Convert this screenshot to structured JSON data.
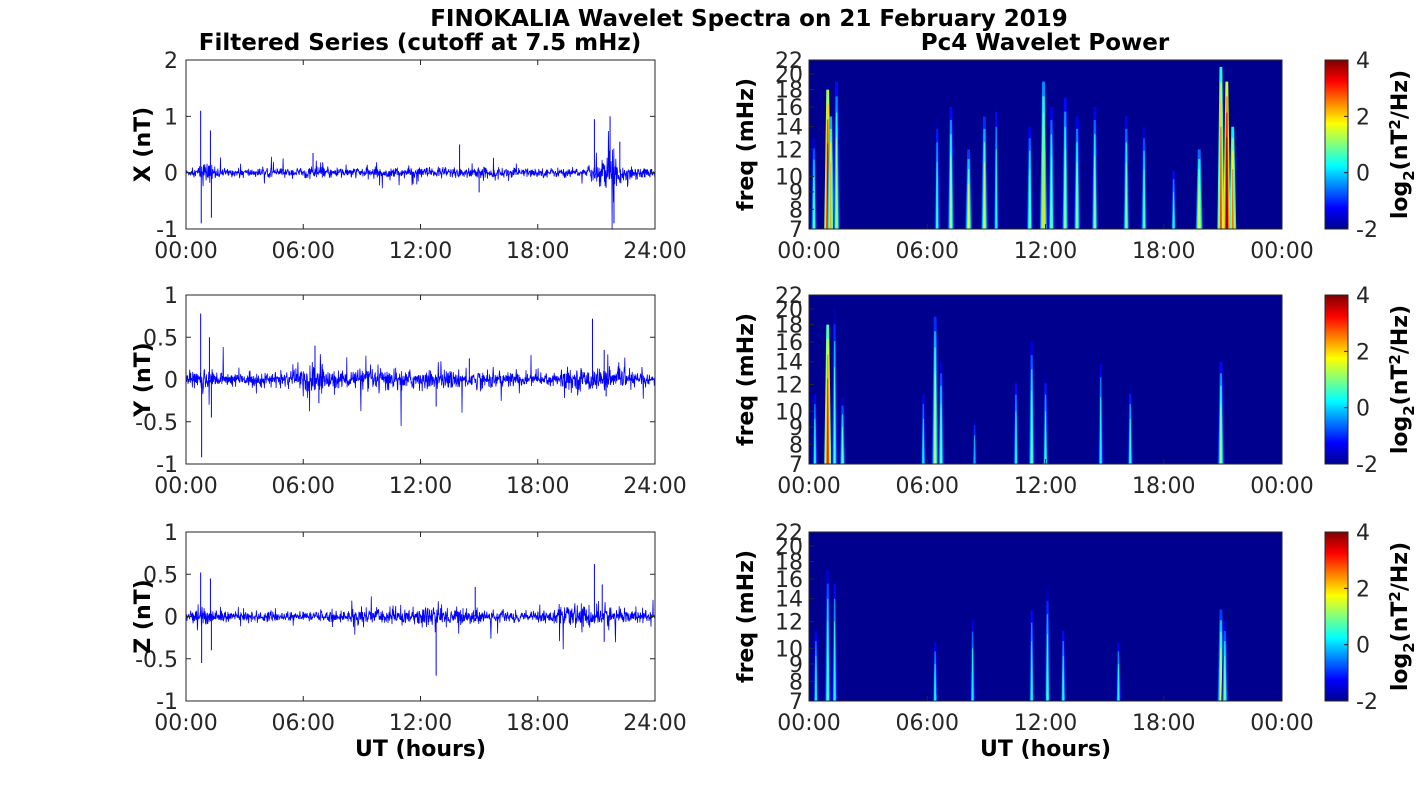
{
  "figure": {
    "title": "FINOKALIA Wavelet Spectra on 21 February 2019",
    "left_title": "Filtered Series (cutoff at 7.5 mHz)",
    "right_title": "Pc4 Wavelet Power"
  },
  "colors": {
    "trace": "#0000ff",
    "spectrum_background": "#00008f",
    "axes": "#262626"
  },
  "chart_data": [
    {
      "type": "line",
      "panel": "X",
      "ylabel": "X (nT)",
      "xlabel": "",
      "xlim": [
        0,
        24
      ],
      "ylim": [
        -1,
        2
      ],
      "x_tick_labels": [
        "00:00",
        "06:00",
        "12:00",
        "18:00",
        "24:00"
      ],
      "y_ticks": [
        -1,
        0,
        1,
        2
      ],
      "y_tick_labels": [
        "-1",
        "0",
        "1",
        "2"
      ],
      "noise_amplitude": 0.06,
      "envelope": [
        {
          "t": 0.0,
          "a": 0.05
        },
        {
          "t": 0.5,
          "a": 0.06
        },
        {
          "t": 0.8,
          "a": 0.18
        },
        {
          "t": 1.3,
          "a": 0.14
        },
        {
          "t": 2.0,
          "a": 0.06
        },
        {
          "t": 5.5,
          "a": 0.07
        },
        {
          "t": 6.5,
          "a": 0.1
        },
        {
          "t": 8.0,
          "a": 0.08
        },
        {
          "t": 12.0,
          "a": 0.09
        },
        {
          "t": 14.0,
          "a": 0.1
        },
        {
          "t": 18.0,
          "a": 0.07
        },
        {
          "t": 20.5,
          "a": 0.08
        },
        {
          "t": 21.8,
          "a": 0.35
        },
        {
          "t": 22.3,
          "a": 0.15
        },
        {
          "t": 24.0,
          "a": 0.06
        }
      ],
      "spikes": [
        {
          "t": 0.75,
          "v": 1.1
        },
        {
          "t": 0.78,
          "v": -0.9
        },
        {
          "t": 1.25,
          "v": 0.75
        },
        {
          "t": 1.3,
          "v": -0.8
        },
        {
          "t": 6.5,
          "v": 0.35
        },
        {
          "t": 14.0,
          "v": 0.5
        },
        {
          "t": 15.0,
          "v": -0.35
        },
        {
          "t": 20.9,
          "v": 0.95
        },
        {
          "t": 21.7,
          "v": 1.0
        },
        {
          "t": 21.9,
          "v": -0.9
        },
        {
          "t": 22.2,
          "v": 0.55
        }
      ]
    },
    {
      "type": "line",
      "panel": "Y",
      "ylabel": "Y (nT)",
      "xlabel": "",
      "xlim": [
        0,
        24
      ],
      "ylim": [
        -1,
        1
      ],
      "x_tick_labels": [
        "00:00",
        "06:00",
        "12:00",
        "18:00",
        "24:00"
      ],
      "y_ticks": [
        -1,
        -0.5,
        0,
        0.5,
        1
      ],
      "y_tick_labels": [
        "-1",
        "-0.5",
        "0",
        "0.5",
        "1"
      ],
      "noise_amplitude": 0.06,
      "envelope": [
        {
          "t": 0.0,
          "a": 0.06
        },
        {
          "t": 0.8,
          "a": 0.15
        },
        {
          "t": 1.5,
          "a": 0.08
        },
        {
          "t": 5.0,
          "a": 0.07
        },
        {
          "t": 6.5,
          "a": 0.2
        },
        {
          "t": 7.5,
          "a": 0.1
        },
        {
          "t": 10.5,
          "a": 0.12
        },
        {
          "t": 12.0,
          "a": 0.1
        },
        {
          "t": 15.0,
          "a": 0.1
        },
        {
          "t": 18.0,
          "a": 0.08
        },
        {
          "t": 21.0,
          "a": 0.13
        },
        {
          "t": 22.0,
          "a": 0.1
        },
        {
          "t": 24.0,
          "a": 0.06
        }
      ],
      "spikes": [
        {
          "t": 0.75,
          "v": 0.78
        },
        {
          "t": 0.8,
          "v": -0.92
        },
        {
          "t": 1.2,
          "v": 0.5
        },
        {
          "t": 1.3,
          "v": -0.45
        },
        {
          "t": 6.6,
          "v": 0.4
        },
        {
          "t": 6.8,
          "v": -0.28
        },
        {
          "t": 12.8,
          "v": -0.32
        },
        {
          "t": 14.5,
          "v": 0.25
        },
        {
          "t": 20.8,
          "v": 0.72
        },
        {
          "t": 21.4,
          "v": 0.35
        },
        {
          "t": 21.5,
          "v": -0.2
        }
      ]
    },
    {
      "type": "line",
      "panel": "Z",
      "ylabel": "Z (nT)",
      "xlabel": "UT (hours)",
      "xlim": [
        0,
        24
      ],
      "ylim": [
        -1,
        1
      ],
      "x_tick_labels": [
        "00:00",
        "06:00",
        "12:00",
        "18:00",
        "24:00"
      ],
      "y_ticks": [
        -1,
        -0.5,
        0,
        0.5,
        1
      ],
      "y_tick_labels": [
        "-1",
        "-0.5",
        "0",
        "0.5",
        "1"
      ],
      "noise_amplitude": 0.04,
      "envelope": [
        {
          "t": 0.0,
          "a": 0.05
        },
        {
          "t": 0.8,
          "a": 0.12
        },
        {
          "t": 1.5,
          "a": 0.06
        },
        {
          "t": 6.0,
          "a": 0.05
        },
        {
          "t": 8.0,
          "a": 0.07
        },
        {
          "t": 11.5,
          "a": 0.1
        },
        {
          "t": 12.8,
          "a": 0.12
        },
        {
          "t": 15.0,
          "a": 0.07
        },
        {
          "t": 18.0,
          "a": 0.06
        },
        {
          "t": 21.3,
          "a": 0.15
        },
        {
          "t": 22.0,
          "a": 0.09
        },
        {
          "t": 24.0,
          "a": 0.05
        }
      ],
      "spikes": [
        {
          "t": 0.75,
          "v": 0.52
        },
        {
          "t": 0.8,
          "v": -0.55
        },
        {
          "t": 1.25,
          "v": 0.45
        },
        {
          "t": 1.3,
          "v": -0.4
        },
        {
          "t": 12.8,
          "v": -0.7
        },
        {
          "t": 14.8,
          "v": 0.35
        },
        {
          "t": 20.9,
          "v": 0.62
        },
        {
          "t": 21.3,
          "v": 0.38
        },
        {
          "t": 21.4,
          "v": -0.3
        }
      ]
    },
    {
      "type": "heatmap",
      "panel": "X",
      "ylabel": "freq (mHz)",
      "xlabel": "",
      "colorbar_label": "log2(nT2/Hz)",
      "xlim": [
        0,
        24
      ],
      "ylim": [
        7,
        22
      ],
      "color_range": [
        -2,
        4
      ],
      "x_tick_labels": [
        "00:00",
        "06:00",
        "12:00",
        "18:00",
        "00:00"
      ],
      "y_ticks": [
        7,
        8,
        9,
        10,
        12,
        14,
        16,
        18,
        20,
        22
      ],
      "colorbar_ticks": [
        -2,
        0,
        2,
        4
      ],
      "bursts": [
        {
          "t": 0.25,
          "top": 13,
          "peak": 0.8
        },
        {
          "t": 0.95,
          "top": 18,
          "peak": 3.6
        },
        {
          "t": 1.1,
          "top": 15,
          "peak": 2.2
        },
        {
          "t": 1.4,
          "top": 19,
          "peak": 1.2
        },
        {
          "t": 6.5,
          "top": 15,
          "peak": 0.5
        },
        {
          "t": 7.2,
          "top": 16,
          "peak": 1.2
        },
        {
          "t": 8.1,
          "top": 12,
          "peak": 1.5
        },
        {
          "t": 8.9,
          "top": 15,
          "peak": 1.4
        },
        {
          "t": 9.5,
          "top": 17,
          "peak": 0.4
        },
        {
          "t": 11.2,
          "top": 14,
          "peak": 1.0
        },
        {
          "t": 11.9,
          "top": 19,
          "peak": 2.0
        },
        {
          "t": 12.3,
          "top": 16,
          "peak": 1.0
        },
        {
          "t": 13.0,
          "top": 17,
          "peak": 1.2
        },
        {
          "t": 13.6,
          "top": 15,
          "peak": 1.1
        },
        {
          "t": 14.5,
          "top": 16,
          "peak": 1.0
        },
        {
          "t": 16.1,
          "top": 15,
          "peak": 1.0
        },
        {
          "t": 17.0,
          "top": 14,
          "peak": 0.8
        },
        {
          "t": 18.5,
          "top": 11,
          "peak": 0.4
        },
        {
          "t": 19.8,
          "top": 12,
          "peak": 1.8
        },
        {
          "t": 20.9,
          "top": 21,
          "peak": 2.8
        },
        {
          "t": 21.2,
          "top": 19,
          "peak": 3.9
        },
        {
          "t": 21.5,
          "top": 14,
          "peak": 2.6
        }
      ]
    },
    {
      "type": "heatmap",
      "panel": "Y",
      "ylabel": "freq (mHz)",
      "xlabel": "",
      "colorbar_label": "log2(nT2/Hz)",
      "xlim": [
        0,
        24
      ],
      "ylim": [
        7,
        22
      ],
      "color_range": [
        -2,
        4
      ],
      "x_tick_labels": [
        "00:00",
        "06:00",
        "12:00",
        "18:00",
        "00:00"
      ],
      "y_ticks": [
        7,
        8,
        9,
        10,
        12,
        14,
        16,
        18,
        20,
        22
      ],
      "colorbar_ticks": [
        -2,
        0,
        2,
        4
      ],
      "bursts": [
        {
          "t": 0.3,
          "top": 12,
          "peak": 0.3
        },
        {
          "t": 0.95,
          "top": 18,
          "peak": 3.1
        },
        {
          "t": 1.3,
          "top": 20,
          "peak": 0.6
        },
        {
          "t": 1.7,
          "top": 11,
          "peak": 0.8
        },
        {
          "t": 5.8,
          "top": 12,
          "peak": 0.2
        },
        {
          "t": 6.4,
          "top": 19,
          "peak": 1.4
        },
        {
          "t": 6.7,
          "top": 14,
          "peak": 0.8
        },
        {
          "t": 8.4,
          "top": 10,
          "peak": -0.2
        },
        {
          "t": 10.5,
          "top": 13,
          "peak": 0.4
        },
        {
          "t": 11.3,
          "top": 16,
          "peak": 0.9
        },
        {
          "t": 12.0,
          "top": 13,
          "peak": 0.5
        },
        {
          "t": 14.8,
          "top": 15,
          "peak": 0.3
        },
        {
          "t": 16.3,
          "top": 12,
          "peak": 0.5
        },
        {
          "t": 20.9,
          "top": 14,
          "peak": 1.2
        }
      ]
    },
    {
      "type": "heatmap",
      "panel": "Z",
      "ylabel": "freq (mHz)",
      "xlabel": "UT (hours)",
      "colorbar_label": "log2(nT2/Hz)",
      "xlim": [
        0,
        24
      ],
      "ylim": [
        7,
        22
      ],
      "color_range": [
        -2,
        4
      ],
      "x_tick_labels": [
        "00:00",
        "06:00",
        "12:00",
        "18:00",
        "00:00"
      ],
      "y_ticks": [
        7,
        8,
        9,
        10,
        12,
        14,
        16,
        18,
        20,
        22
      ],
      "colorbar_ticks": [
        -2,
        0,
        2,
        4
      ],
      "bursts": [
        {
          "t": 0.35,
          "top": 12,
          "peak": 0.3
        },
        {
          "t": 0.95,
          "top": 17,
          "peak": 0.8
        },
        {
          "t": 1.3,
          "top": 17,
          "peak": 0.4
        },
        {
          "t": 6.4,
          "top": 11,
          "peak": 0.3
        },
        {
          "t": 8.3,
          "top": 13,
          "peak": 0.2
        },
        {
          "t": 11.3,
          "top": 14,
          "peak": 0.4
        },
        {
          "t": 12.1,
          "top": 15,
          "peak": 0.6
        },
        {
          "t": 12.9,
          "top": 12,
          "peak": 0.4
        },
        {
          "t": 15.7,
          "top": 11,
          "peak": 0.3
        },
        {
          "t": 20.9,
          "top": 13,
          "peak": 1.5
        },
        {
          "t": 21.1,
          "top": 12,
          "peak": 0.9
        }
      ]
    }
  ]
}
